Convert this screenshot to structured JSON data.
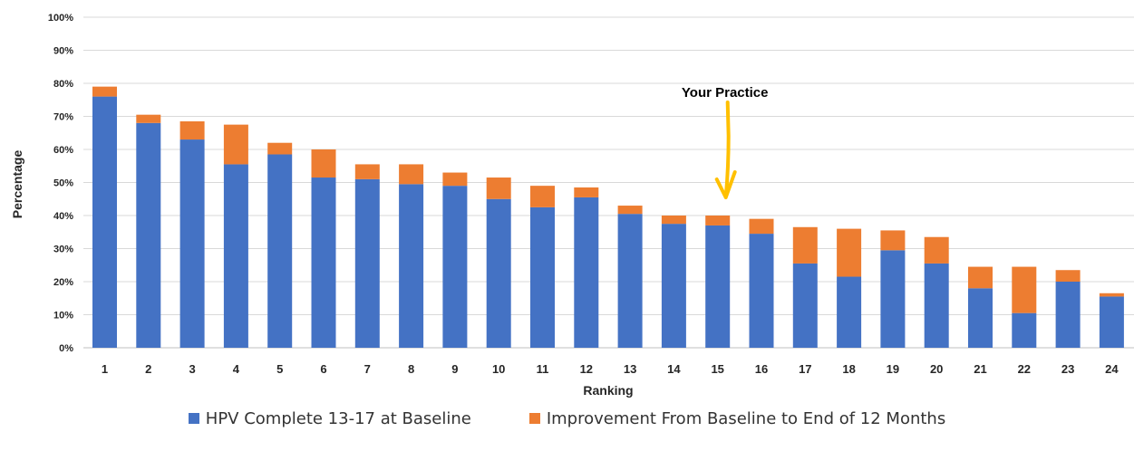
{
  "chart_data": {
    "type": "bar",
    "stacked": true,
    "categories": [
      "1",
      "2",
      "3",
      "4",
      "5",
      "6",
      "7",
      "8",
      "9",
      "10",
      "11",
      "12",
      "13",
      "14",
      "15",
      "16",
      "17",
      "18",
      "19",
      "20",
      "21",
      "22",
      "23",
      "24"
    ],
    "series": [
      {
        "name": "HPV Complete 13-17 at Baseline",
        "color": "#4472C4",
        "values": [
          76,
          68,
          63,
          55.5,
          58.5,
          51.5,
          51,
          49.5,
          49,
          45,
          42.5,
          45.5,
          40.5,
          37.5,
          37,
          34.5,
          25.5,
          21.5,
          29.5,
          25.5,
          18,
          10.5,
          20,
          15.5
        ]
      },
      {
        "name": "Improvement From Baseline to End of 12 Months",
        "color": "#ED7D31",
        "values": [
          3,
          2.5,
          5.5,
          12,
          3.5,
          8.5,
          4.5,
          6,
          4,
          6.5,
          6.5,
          3,
          2.5,
          2.5,
          3,
          4.5,
          11,
          14.5,
          6,
          8,
          6.5,
          14,
          3.5,
          1
        ]
      }
    ],
    "xlabel": "Ranking",
    "ylabel": "Percentage",
    "ylim": [
      0,
      100
    ],
    "yticks": [
      "0%",
      "10%",
      "20%",
      "30%",
      "40%",
      "50%",
      "60%",
      "70%",
      "80%",
      "90%",
      "100%"
    ],
    "grid": true,
    "legend_position": "bottom",
    "annotation": {
      "text": "Your Practice",
      "target_category": "15",
      "arrow_color": "#FFC000"
    }
  }
}
